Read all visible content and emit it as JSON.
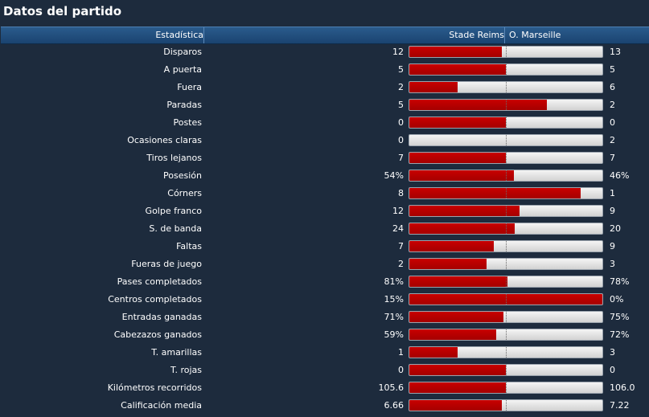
{
  "title": "Datos del partido",
  "header": {
    "stat": "Estadística",
    "home": "Stade Reims",
    "away": "O. Marseille"
  },
  "colors": {
    "home": "#b30000",
    "away": "#e2e2e2",
    "background": "#1d2b3d"
  },
  "rows": [
    {
      "label": "Disparos",
      "home": "12",
      "away": "13",
      "home_share": 0.48
    },
    {
      "label": "A puerta",
      "home": "5",
      "away": "5",
      "home_share": 0.5
    },
    {
      "label": "Fuera",
      "home": "2",
      "away": "6",
      "home_share": 0.25
    },
    {
      "label": "Paradas",
      "home": "5",
      "away": "2",
      "home_share": 0.714
    },
    {
      "label": "Postes",
      "home": "0",
      "away": "0",
      "home_share": 0.5
    },
    {
      "label": "Ocasiones claras",
      "home": "0",
      "away": "2",
      "home_share": 0
    },
    {
      "label": "Tiros lejanos",
      "home": "7",
      "away": "7",
      "home_share": 0.5
    },
    {
      "label": "Posesión",
      "home": "54%",
      "away": "46%",
      "home_share": 0.54
    },
    {
      "label": "Córners",
      "home": "8",
      "away": "1",
      "home_share": 0.889
    },
    {
      "label": "Golpe franco",
      "home": "12",
      "away": "9",
      "home_share": 0.571
    },
    {
      "label": "S. de banda",
      "home": "24",
      "away": "20",
      "home_share": 0.545
    },
    {
      "label": "Faltas",
      "home": "7",
      "away": "9",
      "home_share": 0.4375
    },
    {
      "label": "Fueras de juego",
      "home": "2",
      "away": "3",
      "home_share": 0.4
    },
    {
      "label": "Pases completados",
      "home": "81%",
      "away": "78%",
      "home_share": 0.509
    },
    {
      "label": "Centros completados",
      "home": "15%",
      "away": "0%",
      "home_share": 1
    },
    {
      "label": "Entradas ganadas",
      "home": "71%",
      "away": "75%",
      "home_share": 0.486
    },
    {
      "label": "Cabezazos ganados",
      "home": "59%",
      "away": "72%",
      "home_share": 0.45
    },
    {
      "label": "T. amarillas",
      "home": "1",
      "away": "3",
      "home_share": 0.25
    },
    {
      "label": "T. rojas",
      "home": "0",
      "away": "0",
      "home_share": 0.5
    },
    {
      "label": "Kilómetros recorridos",
      "home": "105.6",
      "away": "106.0",
      "home_share": 0.499
    },
    {
      "label": "Calificación media",
      "home": "6.66",
      "away": "7.22",
      "home_share": 0.48
    }
  ]
}
